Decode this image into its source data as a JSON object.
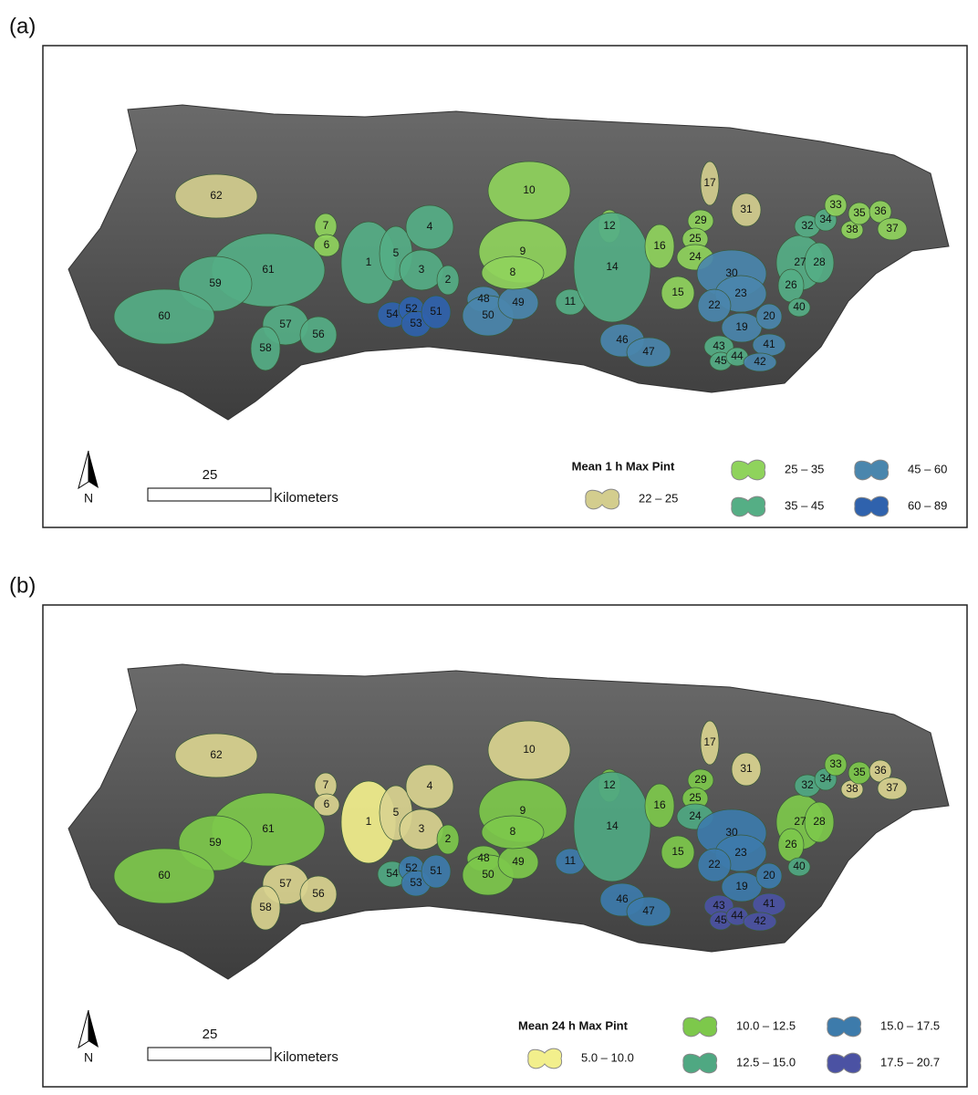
{
  "panels": [
    {
      "label": "(a)",
      "legend": {
        "title": "Mean 1 h Max Pint",
        "entries": [
          {
            "label": "22 – 25",
            "color": "#d3cd8e"
          },
          {
            "label": "25 – 35",
            "color": "#8fd35c"
          },
          {
            "label": "35 – 45",
            "color": "#55ae85"
          },
          {
            "label": "45 – 60",
            "color": "#4a86ad"
          },
          {
            "label": "60 – 89",
            "color": "#2f62ad"
          }
        ]
      },
      "scale": {
        "value": 25,
        "unit": "Kilometers"
      },
      "north": "N",
      "regions": [
        {
          "label": "62",
          "color": "#d3cd8e"
        },
        {
          "label": "7",
          "color": "#8fd35c"
        },
        {
          "label": "6",
          "color": "#8fd35c"
        },
        {
          "label": "1",
          "color": "#55ae85"
        },
        {
          "label": "5",
          "color": "#55ae85"
        },
        {
          "label": "4",
          "color": "#55ae85"
        },
        {
          "label": "3",
          "color": "#55ae85"
        },
        {
          "label": "2",
          "color": "#55ae85"
        },
        {
          "label": "61",
          "color": "#55ae85"
        },
        {
          "label": "59",
          "color": "#55ae85"
        },
        {
          "label": "60",
          "color": "#55ae85"
        },
        {
          "label": "57",
          "color": "#55ae85"
        },
        {
          "label": "58",
          "color": "#55ae85"
        },
        {
          "label": "56",
          "color": "#55ae85"
        },
        {
          "label": "54",
          "color": "#2f62ad"
        },
        {
          "label": "52",
          "color": "#2f62ad"
        },
        {
          "label": "53",
          "color": "#2f62ad"
        },
        {
          "label": "51",
          "color": "#2f62ad"
        },
        {
          "label": "48",
          "color": "#4a86ad"
        },
        {
          "label": "50",
          "color": "#4a86ad"
        },
        {
          "label": "49",
          "color": "#4a86ad"
        },
        {
          "label": "10",
          "color": "#8fd35c"
        },
        {
          "label": "9",
          "color": "#8fd35c"
        },
        {
          "label": "8",
          "color": "#8fd35c"
        },
        {
          "label": "12",
          "color": "#8fd35c"
        },
        {
          "label": "11",
          "color": "#55ae85"
        },
        {
          "label": "14",
          "color": "#55ae85"
        },
        {
          "label": "46",
          "color": "#4a86ad"
        },
        {
          "label": "47",
          "color": "#4a86ad"
        },
        {
          "label": "16",
          "color": "#8fd35c"
        },
        {
          "label": "17",
          "color": "#d3cd8e"
        },
        {
          "label": "15",
          "color": "#8fd35c"
        },
        {
          "label": "29",
          "color": "#8fd35c"
        },
        {
          "label": "25",
          "color": "#8fd35c"
        },
        {
          "label": "24",
          "color": "#8fd35c"
        },
        {
          "label": "31",
          "color": "#d3cd8e"
        },
        {
          "label": "30",
          "color": "#4a86ad"
        },
        {
          "label": "23",
          "color": "#4a86ad"
        },
        {
          "label": "22",
          "color": "#4a86ad"
        },
        {
          "label": "19",
          "color": "#4a86ad"
        },
        {
          "label": "20",
          "color": "#4a86ad"
        },
        {
          "label": "43",
          "color": "#55ae85"
        },
        {
          "label": "45",
          "color": "#55ae85"
        },
        {
          "label": "44",
          "color": "#55ae85"
        },
        {
          "label": "41",
          "color": "#4a86ad"
        },
        {
          "label": "42",
          "color": "#4a86ad"
        },
        {
          "label": "27",
          "color": "#55ae85"
        },
        {
          "label": "28",
          "color": "#55ae85"
        },
        {
          "label": "26",
          "color": "#55ae85"
        },
        {
          "label": "40",
          "color": "#55ae85"
        },
        {
          "label": "32",
          "color": "#55ae85"
        },
        {
          "label": "34",
          "color": "#55ae85"
        },
        {
          "label": "33",
          "color": "#8fd35c"
        },
        {
          "label": "38",
          "color": "#8fd35c"
        },
        {
          "label": "35",
          "color": "#8fd35c"
        },
        {
          "label": "36",
          "color": "#8fd35c"
        },
        {
          "label": "37",
          "color": "#8fd35c"
        }
      ]
    },
    {
      "label": "(b)",
      "legend": {
        "title": "Mean 24 h Max Pint",
        "entries": [
          {
            "label": "5.0 – 10.0",
            "color": "#f2ef8c"
          },
          {
            "label": "10.0 – 12.5",
            "color": "#7dc84b"
          },
          {
            "label": "12.5 – 15.0",
            "color": "#4fa882"
          },
          {
            "label": "15.0 – 17.5",
            "color": "#3d7bab"
          },
          {
            "label": "17.5 – 20.7",
            "color": "#4b52a3"
          }
        ]
      },
      "scale": {
        "value": 25,
        "unit": "Kilometers"
      },
      "north": "N",
      "regions": [
        {
          "label": "62",
          "color": "#d9d28f"
        },
        {
          "label": "7",
          "color": "#d9d28f"
        },
        {
          "label": "6",
          "color": "#d9d28f"
        },
        {
          "label": "1",
          "color": "#f2ef8c"
        },
        {
          "label": "5",
          "color": "#d9d28f"
        },
        {
          "label": "4",
          "color": "#d9d28f"
        },
        {
          "label": "3",
          "color": "#d9d28f"
        },
        {
          "label": "2",
          "color": "#7dc84b"
        },
        {
          "label": "61",
          "color": "#7dc84b"
        },
        {
          "label": "59",
          "color": "#7dc84b"
        },
        {
          "label": "60",
          "color": "#7dc84b"
        },
        {
          "label": "57",
          "color": "#d9d28f"
        },
        {
          "label": "58",
          "color": "#d9d28f"
        },
        {
          "label": "56",
          "color": "#d9d28f"
        },
        {
          "label": "54",
          "color": "#4fa882"
        },
        {
          "label": "52",
          "color": "#3d7bab"
        },
        {
          "label": "53",
          "color": "#3d7bab"
        },
        {
          "label": "51",
          "color": "#3d7bab"
        },
        {
          "label": "48",
          "color": "#7dc84b"
        },
        {
          "label": "50",
          "color": "#7dc84b"
        },
        {
          "label": "49",
          "color": "#7dc84b"
        },
        {
          "label": "10",
          "color": "#d9d28f"
        },
        {
          "label": "9",
          "color": "#7dc84b"
        },
        {
          "label": "8",
          "color": "#7dc84b"
        },
        {
          "label": "12",
          "color": "#7dc84b"
        },
        {
          "label": "11",
          "color": "#3d7bab"
        },
        {
          "label": "14",
          "color": "#4fa882"
        },
        {
          "label": "46",
          "color": "#3d7bab"
        },
        {
          "label": "47",
          "color": "#3d7bab"
        },
        {
          "label": "16",
          "color": "#7dc84b"
        },
        {
          "label": "17",
          "color": "#d9d28f"
        },
        {
          "label": "15",
          "color": "#7dc84b"
        },
        {
          "label": "29",
          "color": "#7dc84b"
        },
        {
          "label": "25",
          "color": "#7dc84b"
        },
        {
          "label": "24",
          "color": "#4fa882"
        },
        {
          "label": "31",
          "color": "#d9d28f"
        },
        {
          "label": "30",
          "color": "#3d7bab"
        },
        {
          "label": "23",
          "color": "#3d7bab"
        },
        {
          "label": "22",
          "color": "#3d7bab"
        },
        {
          "label": "19",
          "color": "#3d7bab"
        },
        {
          "label": "20",
          "color": "#3d7bab"
        },
        {
          "label": "43",
          "color": "#4b52a3"
        },
        {
          "label": "45",
          "color": "#4b52a3"
        },
        {
          "label": "44",
          "color": "#4b52a3"
        },
        {
          "label": "41",
          "color": "#4b52a3"
        },
        {
          "label": "42",
          "color": "#4b52a3"
        },
        {
          "label": "27",
          "color": "#7dc84b"
        },
        {
          "label": "28",
          "color": "#7dc84b"
        },
        {
          "label": "26",
          "color": "#7dc84b"
        },
        {
          "label": "40",
          "color": "#4fa882"
        },
        {
          "label": "32",
          "color": "#4fa882"
        },
        {
          "label": "34",
          "color": "#4fa882"
        },
        {
          "label": "33",
          "color": "#7dc84b"
        },
        {
          "label": "38",
          "color": "#d9d28f"
        },
        {
          "label": "35",
          "color": "#7dc84b"
        },
        {
          "label": "36",
          "color": "#d9d28f"
        },
        {
          "label": "37",
          "color": "#d9d28f"
        }
      ]
    }
  ]
}
